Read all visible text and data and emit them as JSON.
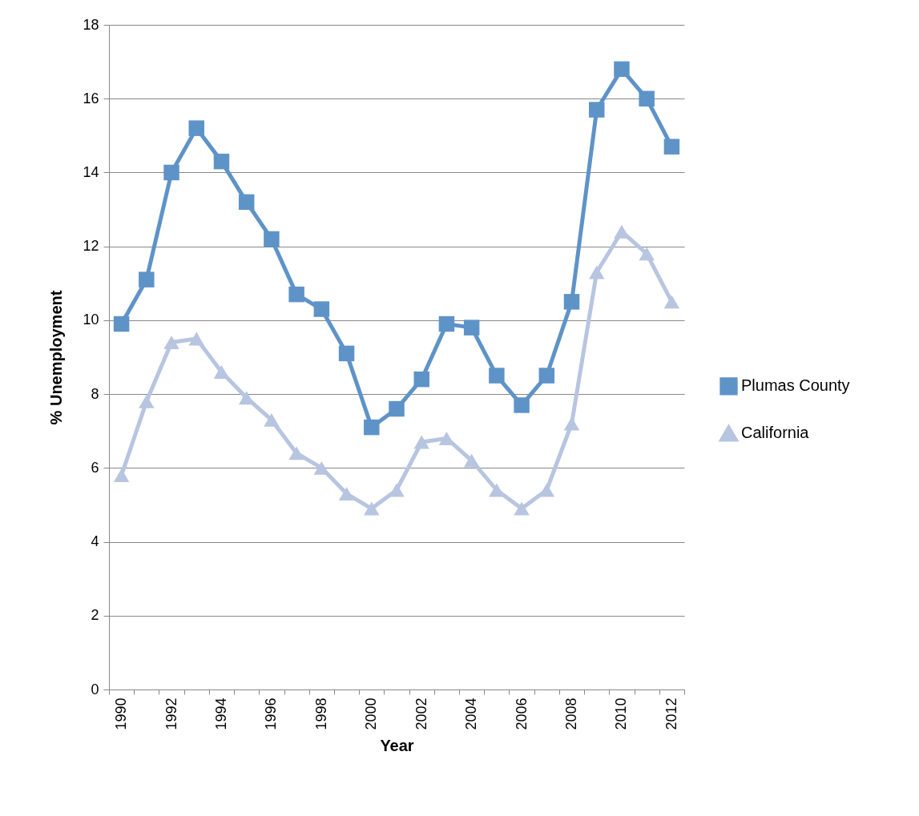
{
  "chart_data": {
    "type": "line",
    "xlabel": "Year",
    "ylabel": "% Unemployment",
    "categories": [
      "1990",
      null,
      "1992",
      null,
      "1994",
      null,
      "1996",
      null,
      "1998",
      null,
      "2000",
      null,
      "2002",
      null,
      "2004",
      null,
      "2006",
      null,
      "2008",
      null,
      "2010",
      null,
      "2012"
    ],
    "series": [
      {
        "name": "Plumas County",
        "color": "#5e93c8",
        "marker": "square",
        "values": [
          9.9,
          11.1,
          14.0,
          15.2,
          14.3,
          13.2,
          12.2,
          10.7,
          10.3,
          9.1,
          7.1,
          7.6,
          8.4,
          9.9,
          9.8,
          8.5,
          7.7,
          8.5,
          10.5,
          15.7,
          16.8,
          16.0,
          14.7
        ]
      },
      {
        "name": "California",
        "color": "#b7c5e0",
        "marker": "triangle",
        "values": [
          5.8,
          7.8,
          9.4,
          9.5,
          8.6,
          7.9,
          7.3,
          6.4,
          6.0,
          5.3,
          4.9,
          5.4,
          6.7,
          6.8,
          6.2,
          5.4,
          4.9,
          5.4,
          7.2,
          11.3,
          12.4,
          11.8,
          10.5
        ]
      }
    ],
    "ylim": [
      0,
      18
    ],
    "yticks": [
      0,
      2,
      4,
      6,
      8,
      10,
      12,
      14,
      16,
      18
    ],
    "grid": "y",
    "legend": "right",
    "line_style": "solid"
  }
}
